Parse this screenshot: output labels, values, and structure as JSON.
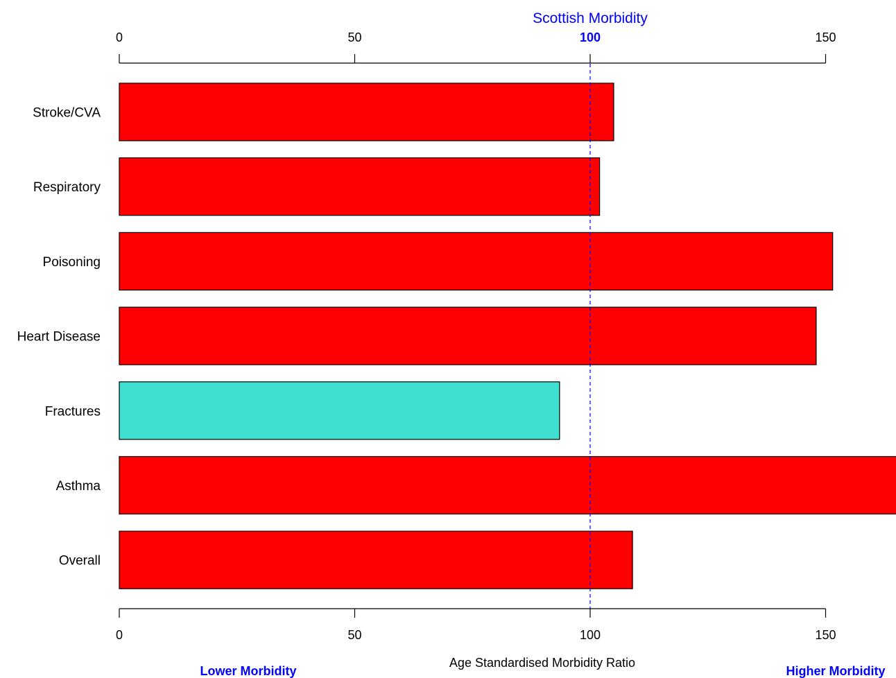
{
  "chart_data": {
    "type": "bar",
    "orientation": "horizontal",
    "categories": [
      "Stroke/CVA",
      "Respiratory",
      "Poisoning",
      "Heart Disease",
      "Fractures",
      "Asthma",
      "Overall"
    ],
    "values": [
      105,
      102,
      151.5,
      148,
      93.5,
      166,
      109
    ],
    "bar_colors": [
      "#ff0000",
      "#ff0000",
      "#ff0000",
      "#ff0000",
      "#40e0d0",
      "#ff0000",
      "#ff0000"
    ],
    "xlabel": "Age Standardised Morbidity Ratio",
    "xlim": [
      0,
      165
    ],
    "x_ticks": [
      "0",
      "50",
      "100",
      "150"
    ],
    "reference": {
      "value": 100,
      "label": "Scottish Morbidity",
      "tick_label": "100",
      "color": "#0000ff"
    },
    "left_note": "Lower Morbidity",
    "right_note": "Higher Morbidity",
    "note_color": "#0000ff",
    "grid": false
  }
}
